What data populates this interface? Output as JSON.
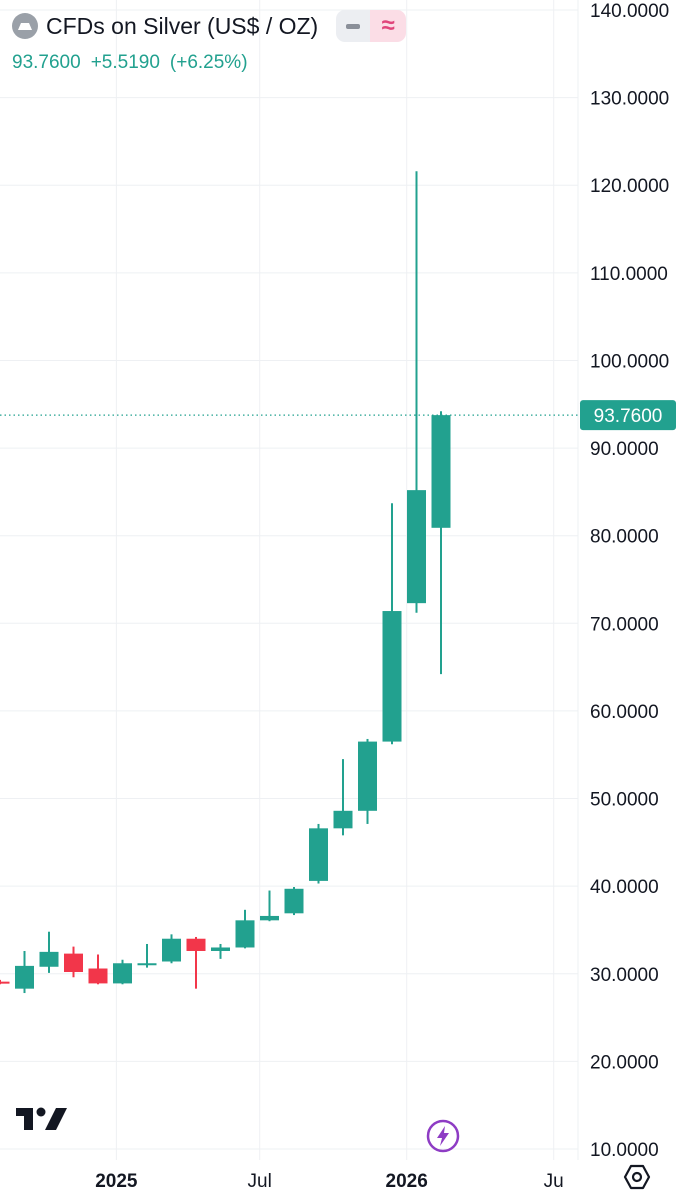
{
  "header": {
    "symbol_title": "CFDs on Silver (US$ / OZ)",
    "price": "93.7600",
    "change": "+5.5190",
    "change_pct": "(+6.25%)",
    "approx_label": "≈"
  },
  "colors": {
    "up": "#22a18f",
    "down": "#f2364a",
    "grid": "#eef0f3",
    "axis_text": "#131722",
    "price_tag_bg": "#22a18f",
    "bolt": "#8e3cc4"
  },
  "icons": [
    "symbol-icon",
    "minus-icon",
    "approx-icon",
    "tradingview-logo-icon",
    "bolt-icon",
    "gear-icon"
  ],
  "chart_data": {
    "type": "candlestick",
    "y_ticks": [
      "10.0000",
      "20.0000",
      "30.0000",
      "40.0000",
      "50.0000",
      "60.0000",
      "70.0000",
      "80.0000",
      "90.0000",
      "100.0000",
      "110.0000",
      "120.0000",
      "130.0000",
      "140.0000"
    ],
    "ylim": [
      10,
      140
    ],
    "x_labels": [
      {
        "label": "2025",
        "index": 4.75,
        "bold": true
      },
      {
        "label": "Jul",
        "index": 10.6,
        "bold": false
      },
      {
        "label": "2026",
        "index": 16.6,
        "bold": true
      },
      {
        "label": "Ju",
        "index": 22.6,
        "bold": false
      }
    ],
    "current_price_label": "93.7600",
    "current_price": 93.76,
    "candles": [
      {
        "o": 29.1,
        "h": 29.3,
        "l": 28.8,
        "c": 28.9
      },
      {
        "o": 28.3,
        "h": 32.6,
        "l": 27.8,
        "c": 30.9
      },
      {
        "o": 30.8,
        "h": 34.8,
        "l": 30.1,
        "c": 32.5
      },
      {
        "o": 32.3,
        "h": 33.1,
        "l": 29.6,
        "c": 30.2
      },
      {
        "o": 30.6,
        "h": 32.2,
        "l": 28.8,
        "c": 28.9
      },
      {
        "o": 28.9,
        "h": 31.6,
        "l": 28.8,
        "c": 31.2
      },
      {
        "o": 31.0,
        "h": 33.4,
        "l": 30.7,
        "c": 31.2
      },
      {
        "o": 31.4,
        "h": 34.5,
        "l": 31.2,
        "c": 34.0
      },
      {
        "o": 34.0,
        "h": 34.2,
        "l": 28.3,
        "c": 32.6
      },
      {
        "o": 32.6,
        "h": 33.4,
        "l": 31.7,
        "c": 33.0
      },
      {
        "o": 33.0,
        "h": 37.3,
        "l": 32.9,
        "c": 36.1
      },
      {
        "o": 36.1,
        "h": 39.5,
        "l": 36.0,
        "c": 36.6
      },
      {
        "o": 36.9,
        "h": 39.9,
        "l": 36.7,
        "c": 39.7
      },
      {
        "o": 40.6,
        "h": 47.1,
        "l": 40.3,
        "c": 46.6
      },
      {
        "o": 46.6,
        "h": 54.5,
        "l": 45.8,
        "c": 48.6
      },
      {
        "o": 48.6,
        "h": 56.8,
        "l": 47.1,
        "c": 56.5
      },
      {
        "o": 56.5,
        "h": 83.7,
        "l": 56.2,
        "c": 71.4
      },
      {
        "o": 72.3,
        "h": 121.6,
        "l": 71.2,
        "c": 85.2
      },
      {
        "o": 80.9,
        "h": 94.2,
        "l": 64.2,
        "c": 93.76
      }
    ]
  }
}
